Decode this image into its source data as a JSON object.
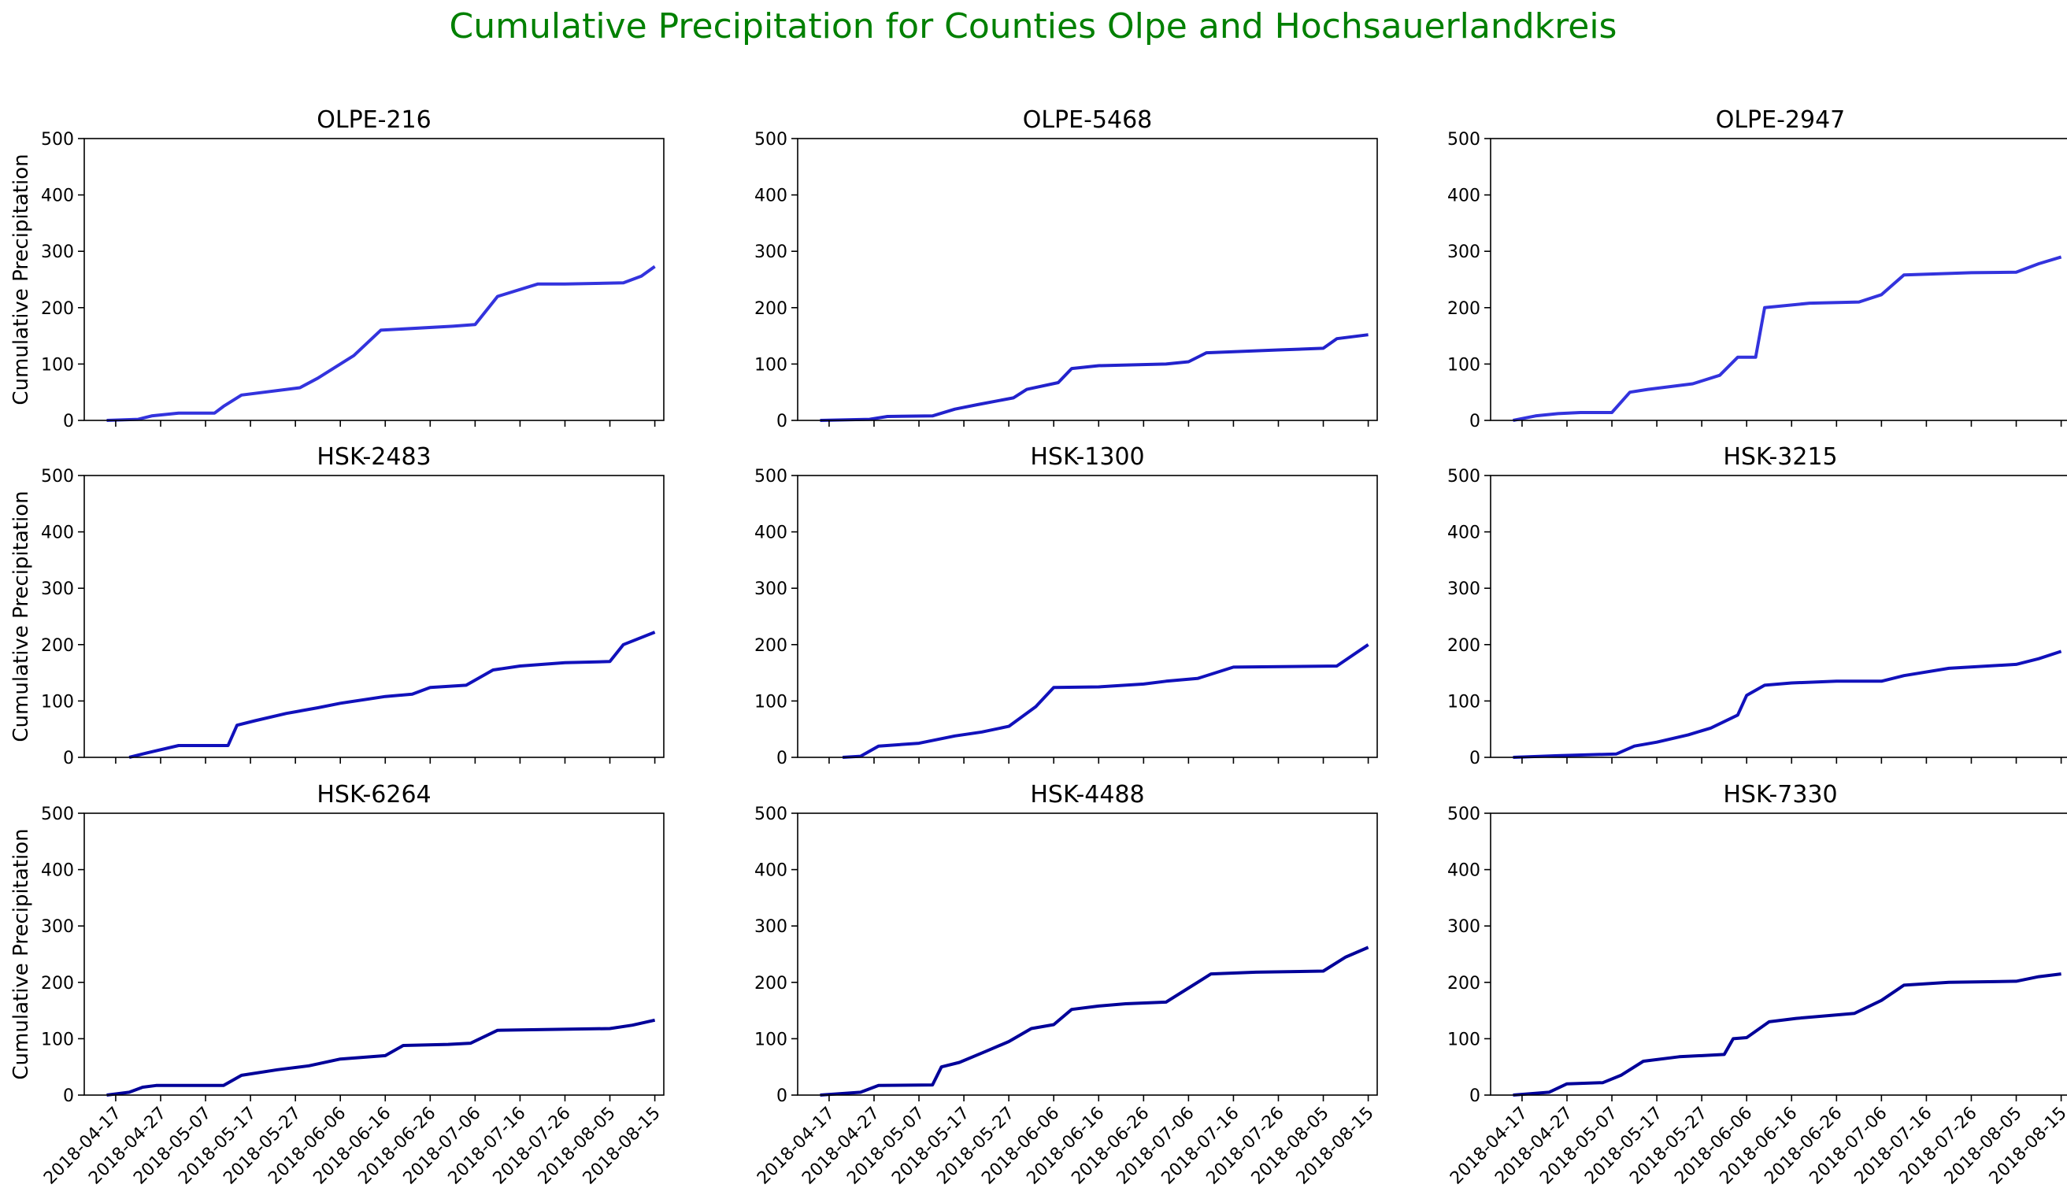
{
  "suptitle": "Cumulative Precipitation for Counties Olpe and Hochsauerlandkreis",
  "colors": {
    "suptitle": "#008000",
    "series": [
      "#3333dd",
      "#2222cc",
      "#3333dd",
      "#1111bb",
      "#1111bb",
      "#1111bb",
      "#000099",
      "#000099",
      "#000099"
    ]
  },
  "chart_data": [
    {
      "type": "line",
      "title": "OLPE-216",
      "ylabel": "Cumulative Precipitation",
      "xlim": [
        "2018-04-10",
        "2018-08-17"
      ],
      "ylim": [
        0,
        500
      ],
      "x": [
        "2018-04-15",
        "2018-04-22",
        "2018-04-25",
        "2018-05-01",
        "2018-05-09",
        "2018-05-11",
        "2018-05-15",
        "2018-05-28",
        "2018-06-01",
        "2018-06-07",
        "2018-06-09",
        "2018-06-15",
        "2018-07-01",
        "2018-07-06",
        "2018-07-11",
        "2018-07-20",
        "2018-07-26",
        "2018-08-08",
        "2018-08-12",
        "2018-08-15"
      ],
      "y": [
        0,
        2,
        8,
        13,
        13,
        25,
        45,
        58,
        75,
        105,
        115,
        160,
        167,
        170,
        220,
        242,
        242,
        244,
        256,
        273
      ]
    },
    {
      "type": "line",
      "title": "OLPE-5468",
      "ylabel": "",
      "xlim": [
        "2018-04-10",
        "2018-08-17"
      ],
      "ylim": [
        0,
        500
      ],
      "x": [
        "2018-04-15",
        "2018-04-26",
        "2018-04-30",
        "2018-05-10",
        "2018-05-15",
        "2018-05-20",
        "2018-05-28",
        "2018-05-31",
        "2018-06-07",
        "2018-06-10",
        "2018-06-16",
        "2018-07-01",
        "2018-07-06",
        "2018-07-10",
        "2018-07-26",
        "2018-08-05",
        "2018-08-08",
        "2018-08-15"
      ],
      "y": [
        0,
        2,
        7,
        8,
        20,
        28,
        40,
        55,
        67,
        92,
        97,
        100,
        104,
        120,
        125,
        128,
        145,
        152
      ]
    },
    {
      "type": "line",
      "title": "OLPE-2947",
      "ylabel": "",
      "xlim": [
        "2018-04-10",
        "2018-08-17"
      ],
      "ylim": [
        0,
        500
      ],
      "x": [
        "2018-04-15",
        "2018-04-20",
        "2018-04-25",
        "2018-04-30",
        "2018-05-07",
        "2018-05-11",
        "2018-05-15",
        "2018-05-25",
        "2018-05-31",
        "2018-06-04",
        "2018-06-08",
        "2018-06-10",
        "2018-06-20",
        "2018-07-01",
        "2018-07-06",
        "2018-07-11",
        "2018-07-26",
        "2018-08-05",
        "2018-08-10",
        "2018-08-15"
      ],
      "y": [
        0,
        8,
        12,
        14,
        14,
        50,
        55,
        65,
        80,
        112,
        112,
        200,
        208,
        210,
        223,
        258,
        262,
        263,
        278,
        290
      ]
    },
    {
      "type": "line",
      "title": "HSK-2483",
      "ylabel": "Cumulative Precipitation",
      "xlim": [
        "2018-04-10",
        "2018-08-17"
      ],
      "ylim": [
        0,
        500
      ],
      "x": [
        "2018-04-20",
        "2018-04-24",
        "2018-05-01",
        "2018-05-12",
        "2018-05-14",
        "2018-05-18",
        "2018-05-25",
        "2018-06-01",
        "2018-06-06",
        "2018-06-16",
        "2018-06-22",
        "2018-06-26",
        "2018-07-04",
        "2018-07-10",
        "2018-07-16",
        "2018-07-26",
        "2018-08-05",
        "2018-08-08",
        "2018-08-15"
      ],
      "y": [
        0,
        8,
        21,
        21,
        57,
        65,
        78,
        88,
        96,
        108,
        112,
        124,
        128,
        155,
        162,
        168,
        170,
        200,
        222
      ]
    },
    {
      "type": "line",
      "title": "HSK-1300",
      "ylabel": "",
      "xlim": [
        "2018-04-10",
        "2018-08-17"
      ],
      "ylim": [
        0,
        500
      ],
      "x": [
        "2018-04-20",
        "2018-04-24",
        "2018-04-28",
        "2018-05-07",
        "2018-05-15",
        "2018-05-21",
        "2018-05-27",
        "2018-06-02",
        "2018-06-06",
        "2018-06-16",
        "2018-06-26",
        "2018-07-01",
        "2018-07-08",
        "2018-07-16",
        "2018-08-08",
        "2018-08-15"
      ],
      "y": [
        0,
        2,
        20,
        25,
        38,
        45,
        55,
        90,
        124,
        125,
        130,
        135,
        140,
        160,
        162,
        200
      ]
    },
    {
      "type": "line",
      "title": "HSK-3215",
      "ylabel": "",
      "xlim": [
        "2018-04-10",
        "2018-08-17"
      ],
      "ylim": [
        0,
        500
      ],
      "x": [
        "2018-04-15",
        "2018-04-25",
        "2018-05-08",
        "2018-05-12",
        "2018-05-17",
        "2018-05-24",
        "2018-05-29",
        "2018-06-04",
        "2018-06-06",
        "2018-06-10",
        "2018-06-16",
        "2018-06-26",
        "2018-07-06",
        "2018-07-11",
        "2018-07-21",
        "2018-08-05",
        "2018-08-10",
        "2018-08-15"
      ],
      "y": [
        0,
        3,
        6,
        20,
        27,
        40,
        52,
        75,
        110,
        128,
        132,
        135,
        135,
        145,
        158,
        165,
        175,
        188
      ]
    },
    {
      "type": "line",
      "title": "HSK-6264",
      "ylabel": "Cumulative Precipitation",
      "xlim": [
        "2018-04-10",
        "2018-08-17"
      ],
      "ylim": [
        0,
        500
      ],
      "x": [
        "2018-04-15",
        "2018-04-20",
        "2018-04-23",
        "2018-04-26",
        "2018-05-11",
        "2018-05-15",
        "2018-05-23",
        "2018-05-30",
        "2018-06-06",
        "2018-06-16",
        "2018-06-20",
        "2018-06-30",
        "2018-07-05",
        "2018-07-11",
        "2018-08-05",
        "2018-08-10",
        "2018-08-15"
      ],
      "y": [
        0,
        5,
        14,
        17,
        17,
        35,
        45,
        52,
        64,
        70,
        88,
        90,
        92,
        115,
        118,
        124,
        133
      ]
    },
    {
      "type": "line",
      "title": "HSK-4488",
      "ylabel": "",
      "xlim": [
        "2018-04-10",
        "2018-08-17"
      ],
      "ylim": [
        0,
        500
      ],
      "x": [
        "2018-04-15",
        "2018-04-24",
        "2018-04-28",
        "2018-05-10",
        "2018-05-12",
        "2018-05-16",
        "2018-05-22",
        "2018-05-27",
        "2018-06-01",
        "2018-06-06",
        "2018-06-10",
        "2018-06-16",
        "2018-06-22",
        "2018-07-01",
        "2018-07-06",
        "2018-07-11",
        "2018-07-21",
        "2018-08-05",
        "2018-08-10",
        "2018-08-15"
      ],
      "y": [
        0,
        5,
        17,
        18,
        50,
        58,
        78,
        95,
        118,
        125,
        152,
        158,
        162,
        165,
        190,
        215,
        218,
        220,
        245,
        262
      ]
    },
    {
      "type": "line",
      "title": "HSK-7330",
      "ylabel": "",
      "xlim": [
        "2018-04-10",
        "2018-08-17"
      ],
      "ylim": [
        0,
        500
      ],
      "x": [
        "2018-04-15",
        "2018-04-23",
        "2018-04-27",
        "2018-05-05",
        "2018-05-09",
        "2018-05-14",
        "2018-05-22",
        "2018-06-01",
        "2018-06-03",
        "2018-06-06",
        "2018-06-11",
        "2018-06-17",
        "2018-06-30",
        "2018-07-06",
        "2018-07-11",
        "2018-07-21",
        "2018-08-05",
        "2018-08-10",
        "2018-08-15"
      ],
      "y": [
        0,
        5,
        20,
        22,
        35,
        60,
        68,
        72,
        100,
        102,
        130,
        136,
        145,
        168,
        195,
        200,
        202,
        210,
        215
      ]
    }
  ],
  "x_ticks": [
    "2018-04-17",
    "2018-04-27",
    "2018-05-07",
    "2018-05-17",
    "2018-05-27",
    "2018-06-06",
    "2018-06-16",
    "2018-06-26",
    "2018-07-06",
    "2018-07-16",
    "2018-07-26",
    "2018-08-05",
    "2018-08-15"
  ],
  "y_ticks": [
    "0",
    "100",
    "200",
    "300",
    "400",
    "500"
  ]
}
